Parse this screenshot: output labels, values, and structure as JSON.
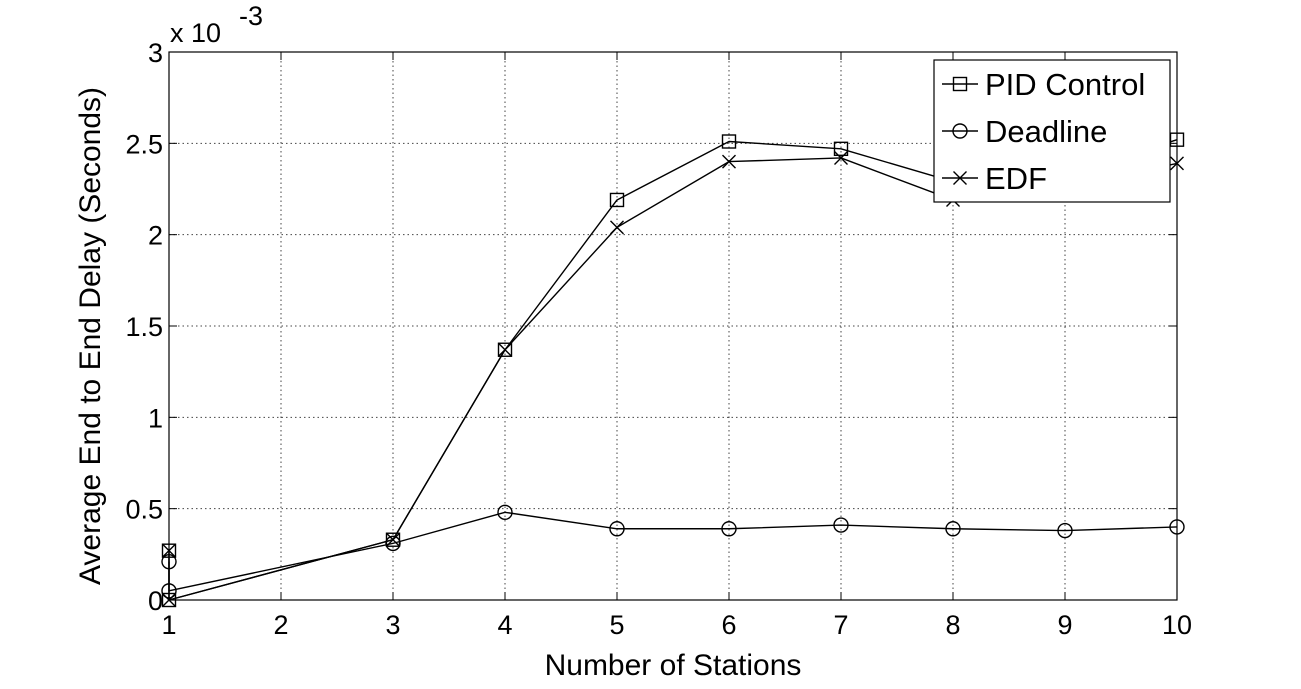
{
  "chart_data": {
    "type": "line",
    "title": "",
    "xlabel": "Number of Stations",
    "ylabel": "Average End to End Delay (Seconds)",
    "y_exponent_label": "x 10",
    "y_exponent_power": "-3",
    "xlim": [
      1,
      10
    ],
    "ylim": [
      0,
      3
    ],
    "x_ticks": [
      1,
      2,
      3,
      4,
      5,
      6,
      7,
      8,
      9,
      10
    ],
    "y_ticks": [
      0,
      0.5,
      1,
      1.5,
      2,
      2.5,
      3
    ],
    "y_tick_labels": [
      "0",
      "0.5",
      "1",
      "1.5",
      "2",
      "2.5",
      "3"
    ],
    "grid": true,
    "legend_position": "top-right",
    "series": [
      {
        "name": "PID Control",
        "marker": "square",
        "x": [
          1,
          1,
          3,
          4,
          5,
          6,
          7,
          8,
          9,
          10
        ],
        "y": [
          0.27,
          0.0,
          0.33,
          1.37,
          2.19,
          2.51,
          2.47,
          2.29,
          2.32,
          2.52
        ]
      },
      {
        "name": "Deadline",
        "marker": "circle",
        "x": [
          1,
          1,
          3,
          4,
          5,
          6,
          7,
          8,
          9,
          10
        ],
        "y": [
          0.21,
          0.05,
          0.31,
          0.48,
          0.39,
          0.39,
          0.41,
          0.39,
          0.38,
          0.4
        ]
      },
      {
        "name": "EDF",
        "marker": "x",
        "x": [
          1,
          1,
          3,
          4,
          5,
          6,
          7,
          8,
          9,
          10
        ],
        "y": [
          0.27,
          0.0,
          0.33,
          1.37,
          2.04,
          2.4,
          2.42,
          2.19,
          2.26,
          2.39
        ]
      }
    ]
  }
}
